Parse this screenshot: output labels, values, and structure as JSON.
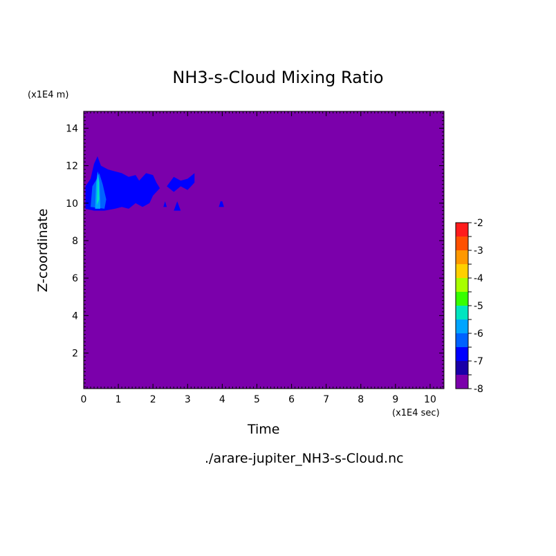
{
  "chart_data": {
    "type": "heatmap",
    "title": "NH3-s-Cloud Mixing Ratio",
    "xlabel": "Time",
    "ylabel": "Z-coordinate",
    "x_unit": "(x1E4 sec)",
    "y_unit": "(x1E4 m)",
    "xlim": [
      0,
      10.4
    ],
    "ylim": [
      0.1,
      14.9
    ],
    "x_ticks": [
      "0",
      "1",
      "2",
      "3",
      "4",
      "5",
      "6",
      "7",
      "8",
      "9",
      "10"
    ],
    "x_tick_values": [
      0,
      1,
      2,
      3,
      4,
      5,
      6,
      7,
      8,
      9,
      10
    ],
    "y_ticks": [
      "2",
      "4",
      "6",
      "8",
      "10",
      "12",
      "14"
    ],
    "y_tick_values": [
      2,
      4,
      6,
      8,
      10,
      12,
      14
    ],
    "background_level": -8,
    "colorbar": {
      "levels": [
        -8,
        -7.5,
        -7,
        -6.5,
        -6,
        -5.5,
        -5,
        -4.5,
        -4,
        -3.5,
        -3,
        -2.5,
        -2
      ],
      "labels": [
        "-2",
        "-3",
        "-4",
        "-5",
        "-6",
        "-7",
        "-8"
      ],
      "label_values": [
        -2,
        -3,
        -4,
        -5,
        -6,
        -7,
        -8
      ],
      "colors": [
        "#7b00ab",
        "#1a00a8",
        "#0000ff",
        "#0062ff",
        "#00a5ff",
        "#00e5c0",
        "#36ff00",
        "#a8ff00",
        "#ffd000",
        "#ff9800",
        "#ff5000",
        "#ff1c1c",
        "#ffb0b0"
      ]
    },
    "regions": [
      {
        "level": -7,
        "shape": [
          [
            0.05,
            9.7
          ],
          [
            0.05,
            10.9
          ],
          [
            0.2,
            11.3
          ],
          [
            0.3,
            12.1
          ],
          [
            0.4,
            12.5
          ],
          [
            0.5,
            12.0
          ],
          [
            0.7,
            11.8
          ],
          [
            0.9,
            11.7
          ],
          [
            1.1,
            11.6
          ],
          [
            1.3,
            11.4
          ],
          [
            1.5,
            11.5
          ],
          [
            1.6,
            11.2
          ],
          [
            1.8,
            11.6
          ],
          [
            2.0,
            11.5
          ],
          [
            2.1,
            11.1
          ],
          [
            2.2,
            10.8
          ],
          [
            2.0,
            10.4
          ],
          [
            1.9,
            10.0
          ],
          [
            1.7,
            9.8
          ],
          [
            1.5,
            10.0
          ],
          [
            1.3,
            9.7
          ],
          [
            1.1,
            9.8
          ],
          [
            0.9,
            9.7
          ],
          [
            0.6,
            9.6
          ],
          [
            0.3,
            9.6
          ]
        ]
      },
      {
        "level": -7,
        "shape": [
          [
            2.4,
            10.9
          ],
          [
            2.6,
            11.4
          ],
          [
            2.8,
            11.2
          ],
          [
            3.0,
            11.3
          ],
          [
            3.2,
            11.6
          ],
          [
            3.2,
            11.1
          ],
          [
            3.0,
            10.7
          ],
          [
            2.8,
            10.9
          ],
          [
            2.6,
            10.6
          ]
        ]
      },
      {
        "level": -7,
        "shape": [
          [
            2.6,
            9.6
          ],
          [
            2.7,
            10.1
          ],
          [
            2.8,
            9.6
          ]
        ]
      },
      {
        "level": -7,
        "shape": [
          [
            2.3,
            9.8
          ],
          [
            2.35,
            10.1
          ],
          [
            2.4,
            9.8
          ]
        ]
      },
      {
        "level": -7,
        "shape": [
          [
            3.9,
            9.8
          ],
          [
            3.95,
            10.1
          ],
          [
            4.0,
            10.1
          ],
          [
            4.05,
            9.8
          ]
        ]
      },
      {
        "level": -6.5,
        "shape": [
          [
            0.2,
            9.8
          ],
          [
            0.25,
            10.9
          ],
          [
            0.35,
            11.2
          ],
          [
            0.45,
            11.6
          ],
          [
            0.55,
            11.0
          ],
          [
            0.65,
            10.2
          ],
          [
            0.6,
            9.7
          ]
        ]
      },
      {
        "level": -6,
        "shape": [
          [
            0.33,
            9.7
          ],
          [
            0.36,
            11.1
          ],
          [
            0.41,
            11.7
          ],
          [
            0.46,
            11.1
          ],
          [
            0.48,
            9.7
          ]
        ]
      },
      {
        "level": -5.5,
        "shape": [
          [
            0.38,
            9.9
          ],
          [
            0.4,
            11.2
          ],
          [
            0.43,
            11.4
          ],
          [
            0.45,
            10.2
          ]
        ]
      }
    ]
  },
  "file_label": "./arare-jupiter_NH3-s-Cloud.nc"
}
